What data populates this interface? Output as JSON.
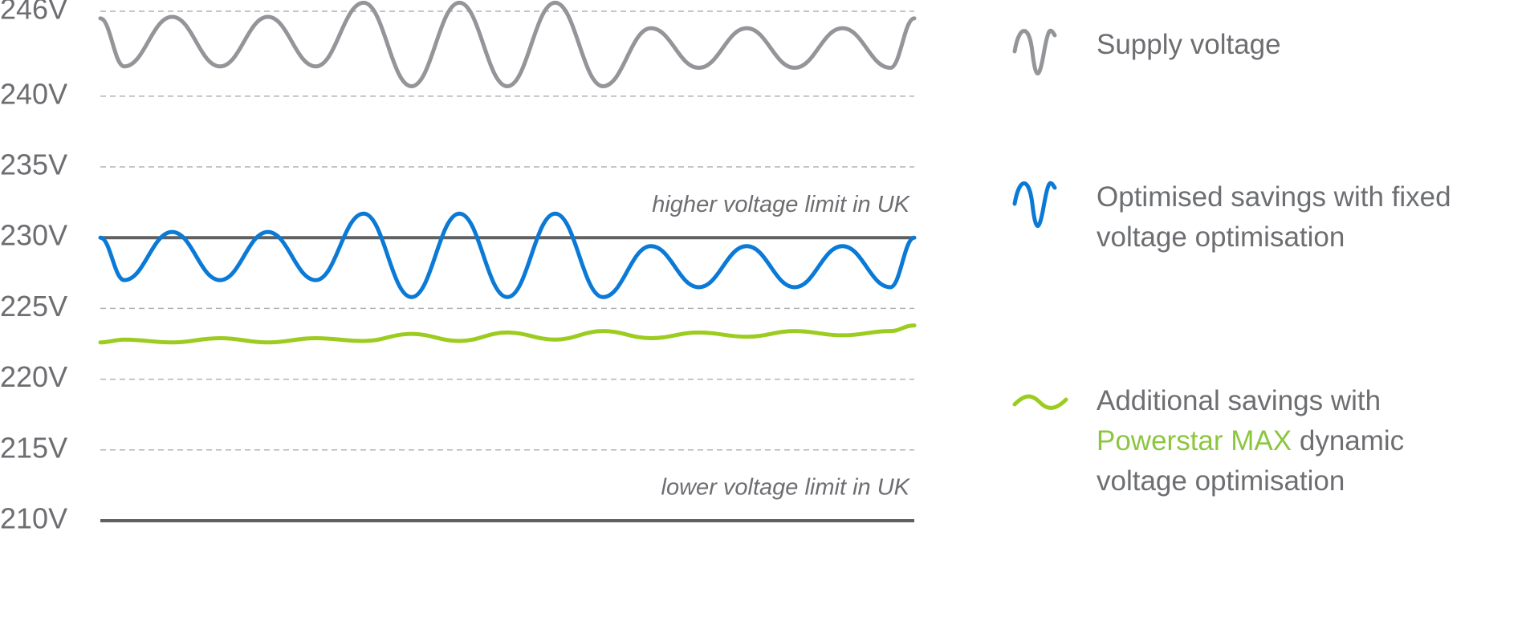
{
  "chart_data": {
    "type": "line",
    "ylim": [
      210,
      246
    ],
    "yticks": [
      {
        "value": 210,
        "label": "210V"
      },
      {
        "value": 215,
        "label": "215V"
      },
      {
        "value": 220,
        "label": "220V"
      },
      {
        "value": 225,
        "label": "225V"
      },
      {
        "value": 230,
        "label": "230V"
      },
      {
        "value": 235,
        "label": "235V"
      },
      {
        "value": 240,
        "label": "240V"
      },
      {
        "value": 246,
        "label": "246V"
      }
    ],
    "grid": true,
    "legend": "right",
    "reference_lines": [
      {
        "value": 230,
        "label": "higher voltage limit in UK",
        "color": "#5f6062"
      },
      {
        "value": 210,
        "label": "lower voltage limit in UK",
        "color": "#5f6062"
      }
    ],
    "series": [
      {
        "name": "Supply voltage",
        "color": "#939598",
        "values": [
          245.5,
          242.1,
          245.6,
          242.1,
          245.6,
          242.1,
          246.6,
          240.7,
          246.6,
          240.7,
          246.6,
          240.7,
          244.8,
          242.0,
          244.8,
          242.0,
          244.8,
          242.0,
          245.5
        ]
      },
      {
        "name": "Optimised savings with fixed voltage optimisation",
        "color": "#0a7ad6",
        "values": [
          230,
          227.0,
          230.4,
          227.0,
          230.4,
          227.0,
          231.7,
          225.8,
          231.7,
          225.8,
          231.7,
          225.8,
          229.4,
          226.5,
          229.4,
          226.5,
          229.4,
          226.5,
          230
        ]
      },
      {
        "name": [
          {
            "text": "Additional savings with "
          },
          {
            "text": "Powerstar MAX",
            "color": "#8cc63f"
          },
          {
            "text": " dynamic voltage optimisation"
          }
        ],
        "color": "#9ccc1f",
        "values": [
          222.6,
          222.8,
          222.6,
          222.9,
          222.6,
          222.9,
          222.7,
          223.2,
          222.7,
          223.3,
          222.8,
          223.4,
          222.9,
          223.3,
          223.0,
          223.4,
          223.1,
          223.4,
          223.8
        ]
      }
    ]
  }
}
